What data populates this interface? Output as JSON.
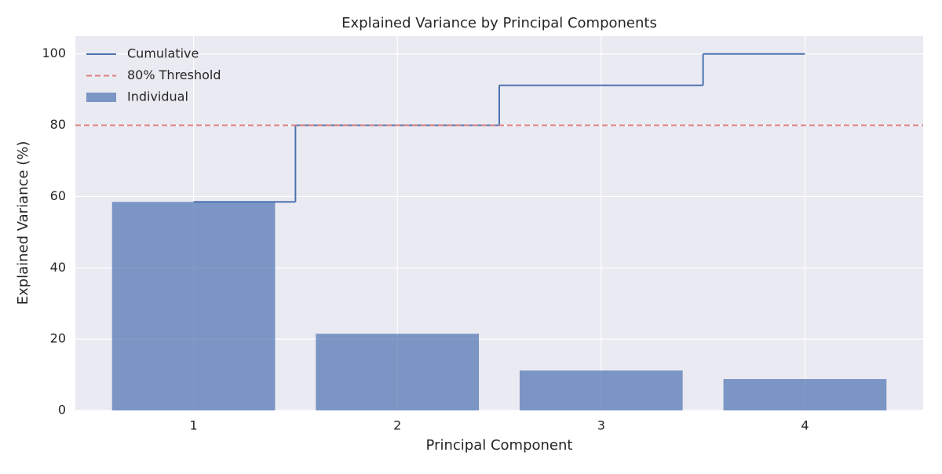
{
  "chart_data": {
    "type": "bar",
    "title": "Explained Variance by Principal Components",
    "x_label": "Principal Component",
    "y_label": "Explained Variance (%)",
    "x": [
      1,
      2,
      3,
      4
    ],
    "series": [
      {
        "name": "Individual",
        "type": "bar",
        "color": "#4c72b0",
        "values": [
          58.5,
          21.5,
          11.2,
          8.8
        ]
      },
      {
        "name": "Cumulative",
        "type": "step",
        "color": "#4c72b0",
        "values": [
          58.5,
          80.0,
          91.2,
          100
        ]
      }
    ],
    "threshold": {
      "value": 80,
      "name": "80% Threshold",
      "color": "#dd7f7f"
    },
    "xlim": [
      0.42,
      4.58
    ],
    "xticks": [
      1,
      2,
      3,
      4
    ],
    "ylim": [
      0,
      105
    ],
    "yticks": [
      0,
      20,
      40,
      60,
      80,
      100
    ],
    "grid": true,
    "legend": "upper left"
  }
}
